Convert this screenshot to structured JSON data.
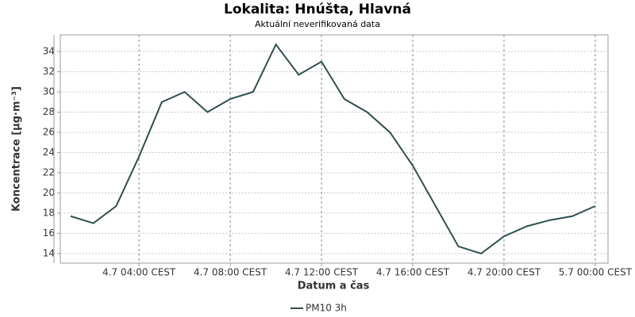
{
  "chart_data": {
    "type": "line",
    "title": "Lokalita: Hnúšta, Hlavná",
    "subtitle": "Aktuální neverifikovaná data",
    "x_label": "Datum a čas",
    "y_label": "Koncentrace [µg·m⁻³]",
    "x": [
      1,
      2,
      3,
      4,
      5,
      6,
      7,
      8,
      9,
      10,
      11,
      12,
      13,
      14,
      15,
      16,
      17,
      18,
      19,
      20,
      21,
      22,
      23,
      24
    ],
    "series": [
      {
        "name": "PM10 3h",
        "color": "#2f4f4f",
        "values": [
          17.7,
          17.0,
          18.7,
          23.6,
          29.0,
          30.0,
          28.0,
          29.3,
          30.0,
          34.7,
          31.7,
          33.0,
          29.3,
          28.0,
          26.0,
          22.7,
          18.7,
          14.7,
          14.0,
          15.7,
          16.7,
          17.3,
          17.7,
          18.7
        ]
      }
    ],
    "xlim": [
      0.55,
      24.56
    ],
    "xticks": [
      {
        "value": 4,
        "label": "4.7 04:00 CEST"
      },
      {
        "value": 8,
        "label": "4.7 08:00 CEST"
      },
      {
        "value": 12,
        "label": "4.7 12:00 CEST"
      },
      {
        "value": 16,
        "label": "4.7 16:00 CEST"
      },
      {
        "value": 20,
        "label": "4.7 20:00 CEST"
      },
      {
        "value": 24,
        "label": "5.7 00:00 CEST"
      }
    ],
    "ylim": [
      13.05,
      35.65
    ],
    "yticks": [
      14,
      16,
      18,
      20,
      22,
      24,
      26,
      28,
      30,
      32,
      34
    ],
    "grid": true
  }
}
